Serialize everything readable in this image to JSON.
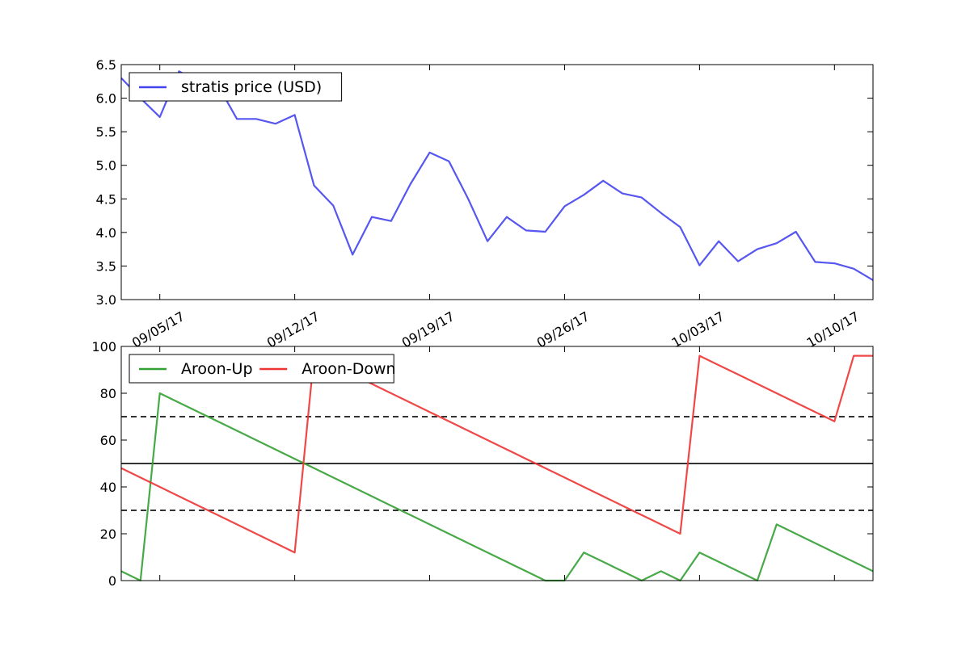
{
  "chart_data": [
    {
      "type": "line",
      "title": "",
      "xlabel": "",
      "ylabel": "",
      "x_dates": [
        "2017-09-03",
        "2017-09-04",
        "2017-09-05",
        "2017-09-06",
        "2017-09-07",
        "2017-09-08",
        "2017-09-09",
        "2017-09-10",
        "2017-09-11",
        "2017-09-12",
        "2017-09-13",
        "2017-09-14",
        "2017-09-15",
        "2017-09-16",
        "2017-09-17",
        "2017-09-18",
        "2017-09-19",
        "2017-09-20",
        "2017-09-21",
        "2017-09-22",
        "2017-09-23",
        "2017-09-24",
        "2017-09-25",
        "2017-09-26",
        "2017-09-27",
        "2017-09-28",
        "2017-09-29",
        "2017-09-30",
        "2017-10-01",
        "2017-10-02",
        "2017-10-03",
        "2017-10-04",
        "2017-10-05",
        "2017-10-06",
        "2017-10-07",
        "2017-10-08",
        "2017-10-09",
        "2017-10-10",
        "2017-10-11",
        "2017-10-12"
      ],
      "series": [
        {
          "name": "stratis price (USD)",
          "color": "#4444ee",
          "values": [
            6.3,
            6.0,
            5.72,
            6.4,
            6.25,
            6.2,
            5.69,
            5.69,
            5.62,
            5.75,
            4.7,
            4.4,
            3.67,
            4.23,
            4.17,
            4.72,
            5.19,
            5.06,
            4.5,
            3.87,
            4.23,
            4.03,
            4.01,
            4.39,
            4.56,
            4.77,
            4.58,
            4.52,
            4.29,
            4.08,
            3.51,
            3.87,
            3.57,
            3.75,
            3.84,
            4.01,
            3.56,
            3.54,
            3.46,
            3.29
          ]
        }
      ],
      "ylim": [
        3.0,
        6.5
      ],
      "yticks": [
        "3.0",
        "3.5",
        "4.0",
        "4.5",
        "5.0",
        "5.5",
        "6.0",
        "6.5"
      ],
      "xtick_labels": [
        "09/05/17",
        "09/12/17",
        "09/19/17",
        "09/26/17",
        "10/03/17",
        "10/10/17"
      ],
      "xtick_dates": [
        "2017-09-05",
        "2017-09-12",
        "2017-09-19",
        "2017-09-26",
        "2017-10-03",
        "2017-10-10"
      ],
      "legend": "upper-left",
      "grid": false
    },
    {
      "type": "line",
      "title": "",
      "xlabel": "",
      "ylabel": "",
      "x_dates": [
        "2017-09-03",
        "2017-09-04",
        "2017-09-05",
        "2017-09-06",
        "2017-09-07",
        "2017-09-08",
        "2017-09-09",
        "2017-09-10",
        "2017-09-11",
        "2017-09-12",
        "2017-09-13",
        "2017-09-14",
        "2017-09-15",
        "2017-09-16",
        "2017-09-17",
        "2017-09-18",
        "2017-09-19",
        "2017-09-20",
        "2017-09-21",
        "2017-09-22",
        "2017-09-23",
        "2017-09-24",
        "2017-09-25",
        "2017-09-26",
        "2017-09-27",
        "2017-09-28",
        "2017-09-29",
        "2017-09-30",
        "2017-10-01",
        "2017-10-02",
        "2017-10-03",
        "2017-10-04",
        "2017-10-05",
        "2017-10-06",
        "2017-10-07",
        "2017-10-08",
        "2017-10-09",
        "2017-10-10",
        "2017-10-11",
        "2017-10-12"
      ],
      "series": [
        {
          "name": "Aroon-Up",
          "color": "#33a033",
          "values": [
            4,
            0,
            80,
            76,
            72,
            68,
            64,
            60,
            56,
            52,
            48,
            44,
            40,
            36,
            32,
            28,
            24,
            20,
            16,
            12,
            8,
            4,
            0,
            0,
            12,
            8,
            4,
            0,
            4,
            0,
            12,
            8,
            4,
            0,
            24,
            20,
            16,
            12,
            8,
            4
          ]
        },
        {
          "name": "Aroon-Down",
          "color": "#ee3333",
          "values": [
            48,
            44,
            40,
            36,
            32,
            28,
            24,
            20,
            16,
            12,
            96,
            92,
            88,
            84,
            80,
            76,
            72,
            68,
            64,
            60,
            56,
            52,
            48,
            44,
            40,
            36,
            32,
            28,
            24,
            20,
            96,
            92,
            88,
            84,
            80,
            76,
            72,
            68,
            96,
            96
          ]
        }
      ],
      "reference_lines": [
        {
          "y": 70,
          "style": "dashed"
        },
        {
          "y": 50,
          "style": "solid"
        },
        {
          "y": 30,
          "style": "dashed"
        }
      ],
      "ylim": [
        0,
        100
      ],
      "yticks": [
        "0",
        "20",
        "40",
        "60",
        "80",
        "100"
      ],
      "legend": "upper-left",
      "grid": false
    }
  ]
}
